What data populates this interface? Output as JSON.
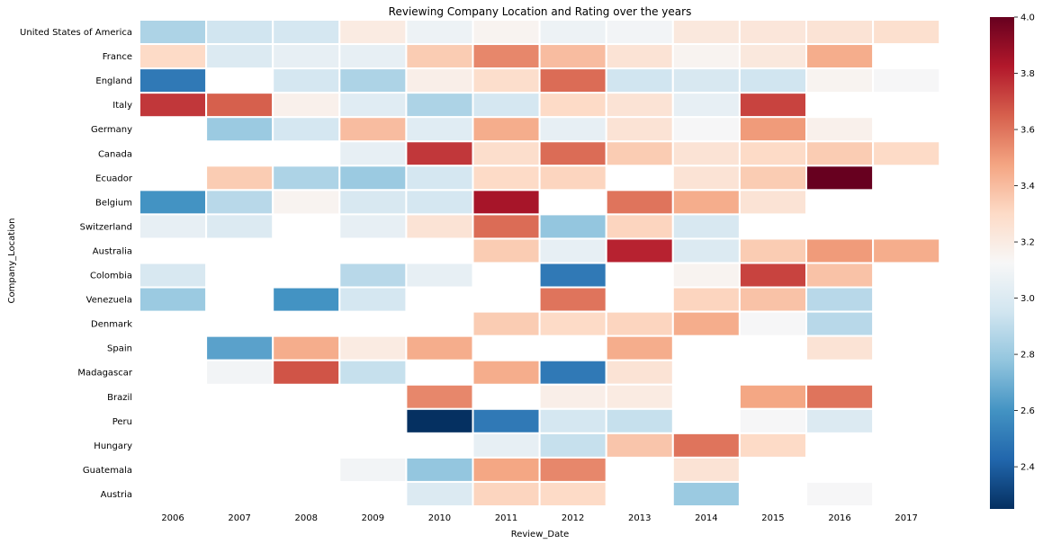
{
  "chart_data": {
    "type": "heatmap",
    "title": "Reviewing Company Location and Rating over the years",
    "xlabel": "Review_Date",
    "ylabel": "Company_Location",
    "x_categories": [
      "2006",
      "2007",
      "2008",
      "2009",
      "2010",
      "2011",
      "2012",
      "2013",
      "2014",
      "2015",
      "2016",
      "2017"
    ],
    "y_categories": [
      "United States of America",
      "France",
      "England",
      "Italy",
      "Germany",
      "Canada",
      "Ecuador",
      "Belgium",
      "Switzerland",
      "Australia",
      "Colombia",
      "Venezuela",
      "Denmark",
      "Spain",
      "Madagascar",
      "Brazil",
      "Peru",
      "Hungary",
      "Guatemala",
      "Austria"
    ],
    "values": [
      [
        2.85,
        2.95,
        2.97,
        3.2,
        3.08,
        3.15,
        3.08,
        3.1,
        3.22,
        3.23,
        3.25,
        3.27
      ],
      [
        3.3,
        3.0,
        3.05,
        3.05,
        3.35,
        3.55,
        3.4,
        3.25,
        3.15,
        3.22,
        3.45,
        null
      ],
      [
        2.5,
        null,
        2.97,
        2.85,
        3.18,
        3.28,
        3.62,
        2.95,
        2.98,
        2.95,
        3.15,
        3.12
      ],
      [
        3.75,
        3.65,
        3.17,
        3.02,
        2.85,
        2.97,
        3.3,
        3.25,
        3.05,
        3.72,
        null,
        null
      ],
      [
        null,
        2.8,
        2.97,
        3.4,
        3.02,
        3.45,
        3.05,
        3.25,
        3.12,
        3.5,
        3.17,
        null
      ],
      [
        null,
        null,
        null,
        3.05,
        3.75,
        3.28,
        3.62,
        3.35,
        3.25,
        3.3,
        3.35,
        3.3
      ],
      [
        null,
        3.35,
        2.85,
        2.8,
        2.97,
        3.3,
        3.32,
        null,
        3.25,
        3.35,
        4.0,
        null
      ],
      [
        2.6,
        2.88,
        3.15,
        2.98,
        2.97,
        3.85,
        null,
        3.6,
        3.45,
        3.25,
        null,
        null
      ],
      [
        3.05,
        3.0,
        null,
        3.05,
        3.25,
        3.62,
        2.78,
        3.32,
        2.98,
        null,
        null,
        null
      ],
      [
        null,
        null,
        null,
        null,
        null,
        3.35,
        3.05,
        3.8,
        3.0,
        3.35,
        3.5,
        3.45
      ],
      [
        2.98,
        null,
        null,
        2.88,
        3.05,
        null,
        2.5,
        null,
        3.15,
        3.72,
        3.38,
        null
      ],
      [
        2.8,
        null,
        2.6,
        2.97,
        null,
        null,
        3.6,
        null,
        3.32,
        3.38,
        2.88,
        null
      ],
      [
        null,
        null,
        null,
        null,
        null,
        3.35,
        3.3,
        3.32,
        3.45,
        3.12,
        2.88,
        null
      ],
      [
        null,
        2.65,
        3.45,
        3.2,
        3.45,
        null,
        null,
        3.45,
        null,
        null,
        3.25,
        null
      ],
      [
        null,
        3.1,
        3.68,
        2.92,
        null,
        3.45,
        2.5,
        3.25,
        null,
        null,
        null,
        null
      ],
      [
        null,
        null,
        null,
        null,
        3.55,
        null,
        3.18,
        3.2,
        null,
        3.47,
        3.6,
        null
      ],
      [
        null,
        null,
        null,
        null,
        2.25,
        2.5,
        2.97,
        2.92,
        null,
        3.12,
        3.0,
        null
      ],
      [
        null,
        null,
        null,
        null,
        null,
        3.05,
        2.92,
        3.37,
        3.6,
        3.3,
        null,
        null
      ],
      [
        null,
        null,
        null,
        3.1,
        2.78,
        3.47,
        3.55,
        null,
        3.25,
        null,
        null,
        null
      ],
      [
        null,
        null,
        null,
        null,
        3.0,
        3.32,
        3.3,
        null,
        2.8,
        null,
        3.12,
        null
      ]
    ],
    "colorbar": {
      "min": 2.25,
      "max": 4.0,
      "ticks": [
        "2.4",
        "2.6",
        "2.8",
        "3.0",
        "3.2",
        "3.4",
        "3.6",
        "3.8",
        "4.0"
      ],
      "colormap": "RdBu_r",
      "stops": [
        "#053061",
        "#2166ac",
        "#4393c3",
        "#92c5de",
        "#d1e5f0",
        "#f7f7f7",
        "#fddbc7",
        "#f4a582",
        "#d6604d",
        "#b2182b",
        "#67001f"
      ]
    },
    "grid_line_color": "#ffffff",
    "empty_cell_color": "#ffffff"
  }
}
